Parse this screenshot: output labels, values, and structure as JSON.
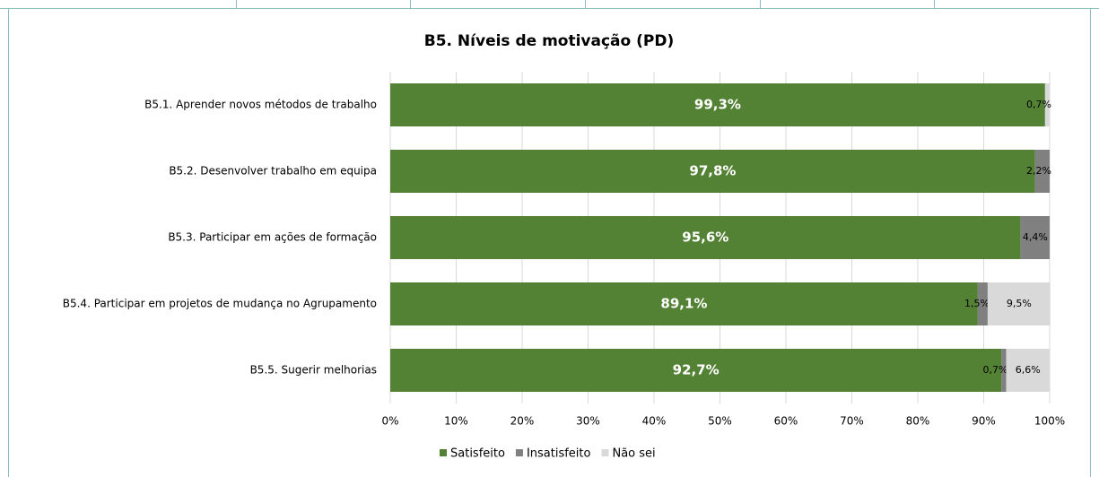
{
  "chart_data": {
    "type": "stacked-bar-horizontal",
    "title": "B5. Níveis de motivação (PD)",
    "categories": [
      "B5.1. Aprender novos métodos de trabalho",
      "B5.2. Desenvolver trabalho em equipa",
      "B5.3. Participar em ações de formação",
      "B5.4. Participar em projetos de mudança no Agrupamento",
      "B5.5. Sugerir melhorias"
    ],
    "series": [
      {
        "name": "Satisfeito",
        "color": "#548235",
        "values": [
          99.3,
          97.8,
          95.6,
          89.1,
          92.7
        ],
        "value_labels": [
          "99,3%",
          "97,8%",
          "95,6%",
          "89,1%",
          "92,7%"
        ]
      },
      {
        "name": "Insatisfeito",
        "color": "#808080",
        "values": [
          null,
          2.2,
          4.4,
          1.5,
          0.7
        ],
        "value_labels": [
          null,
          "2,2%",
          "4,4%",
          "1,5%",
          "0,7%"
        ]
      },
      {
        "name": "Não sei",
        "color": "#d9d9d9",
        "values": [
          0.7,
          null,
          null,
          9.5,
          6.6
        ],
        "value_labels": [
          "0,7%",
          null,
          null,
          "9,5%",
          "6,6%"
        ]
      }
    ],
    "xlim": [
      0,
      100
    ],
    "xticks": [
      {
        "value": 0,
        "label": "0%"
      },
      {
        "value": 10,
        "label": "10%"
      },
      {
        "value": 20,
        "label": "20%"
      },
      {
        "value": 30,
        "label": "30%"
      },
      {
        "value": 40,
        "label": "40%"
      },
      {
        "value": 50,
        "label": "50%"
      },
      {
        "value": 60,
        "label": "60%"
      },
      {
        "value": 70,
        "label": "70%"
      },
      {
        "value": 80,
        "label": "80%"
      },
      {
        "value": 90,
        "label": "90%"
      },
      {
        "value": 100,
        "label": "100%"
      }
    ],
    "grid": true,
    "legend": "bottom"
  }
}
